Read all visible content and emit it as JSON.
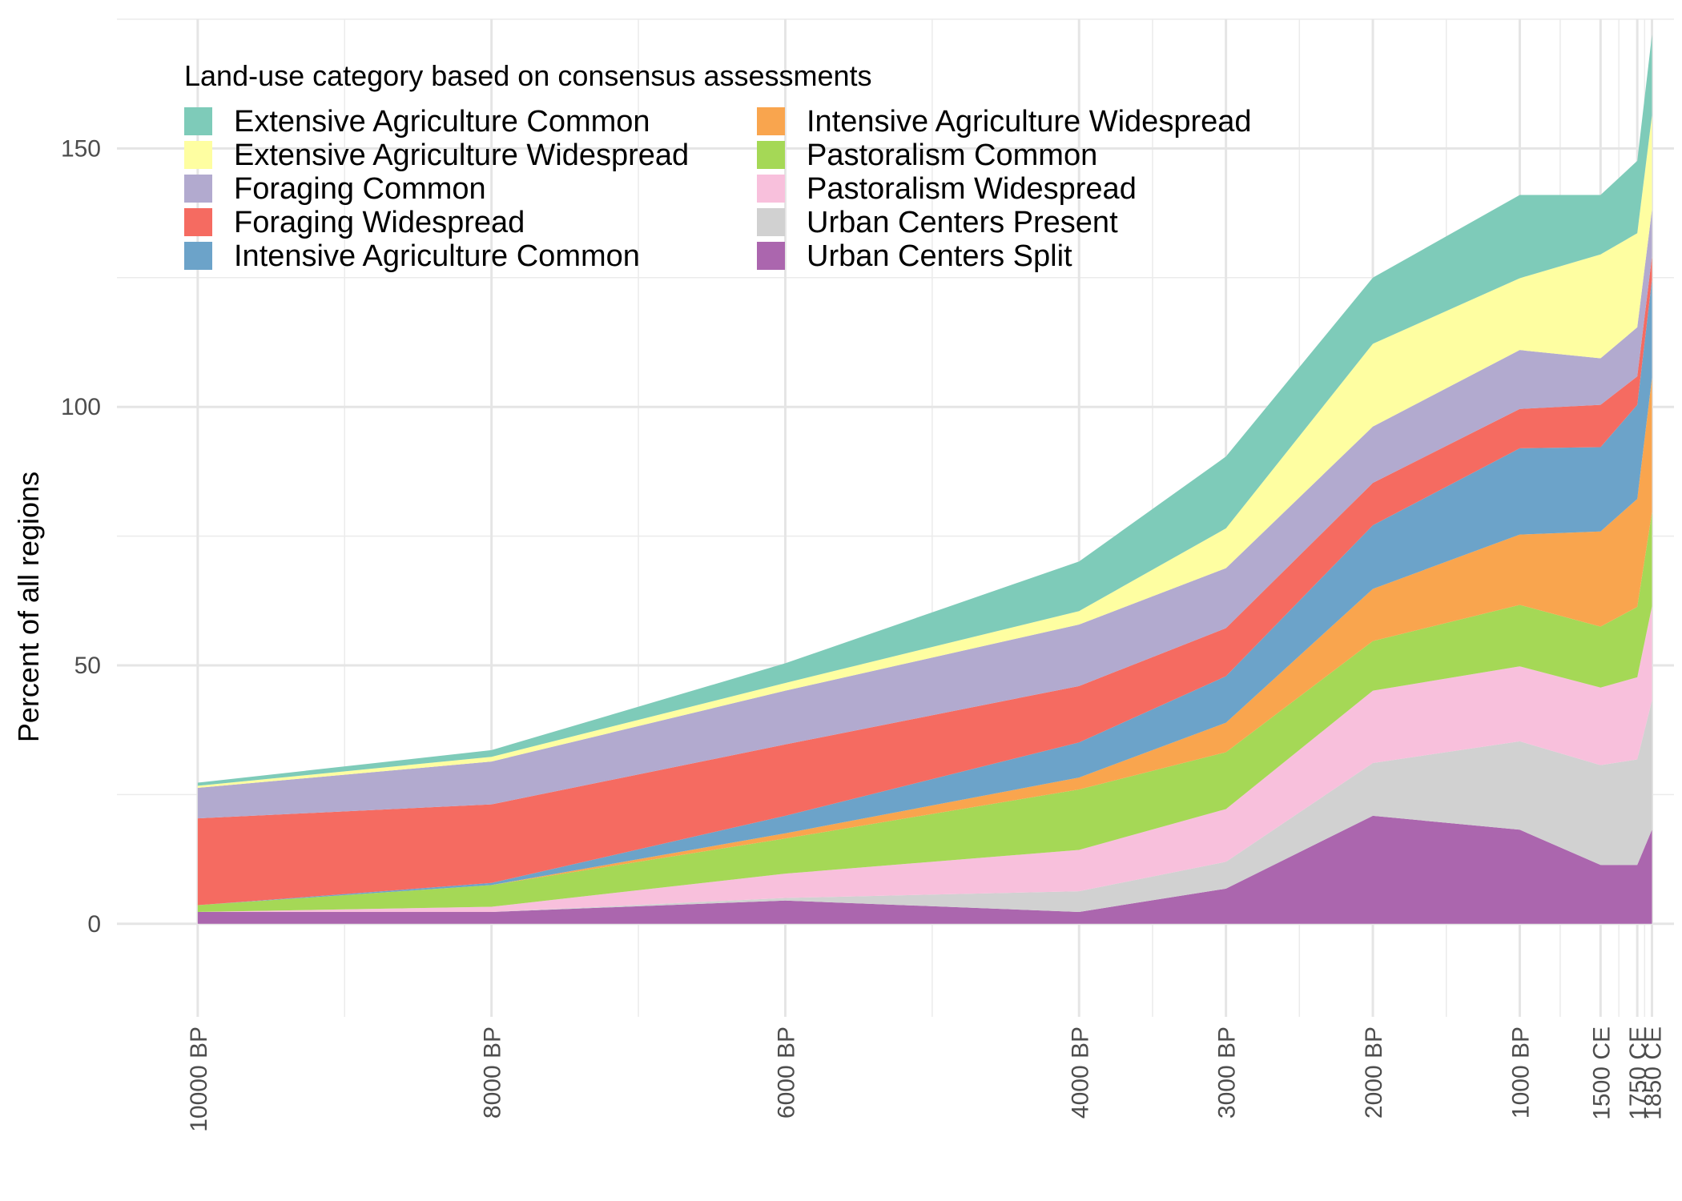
{
  "chart_data": {
    "type": "area",
    "stacked": true,
    "xlabel": "",
    "ylabel": "Percent of all regions",
    "ylim": [
      -18,
      175
    ],
    "y_ticks": [
      0,
      50,
      100,
      150
    ],
    "x_axis": "years before present (1950 CE = 0)",
    "xlim": [
      10550,
      -50
    ],
    "x": [
      10000,
      8000,
      6000,
      4000,
      3000,
      2000,
      1000,
      450,
      200,
      100
    ],
    "x_ticks": [
      {
        "value": 10000,
        "label": "10000 BP"
      },
      {
        "value": 8000,
        "label": "8000 BP"
      },
      {
        "value": 6000,
        "label": "6000 BP"
      },
      {
        "value": 4000,
        "label": "4000 BP"
      },
      {
        "value": 3000,
        "label": "3000 BP"
      },
      {
        "value": 2000,
        "label": "2000 BP"
      },
      {
        "value": 1000,
        "label": "1000 BP"
      },
      {
        "value": 450,
        "label": "1500 CE"
      },
      {
        "value": 200,
        "label": "1750 CE"
      },
      {
        "value": 100,
        "label": "1850 CE"
      }
    ],
    "x_minor_grid": [
      9000,
      7000,
      5000,
      3500,
      2500,
      1500,
      725,
      325,
      150
    ],
    "grid": true,
    "legend": {
      "title": "Land-use category based on consensus assessments",
      "placement": "top-left",
      "columns": 2
    },
    "series": [
      {
        "name": "Urban Centers Split",
        "color": "#ab66ae",
        "values": [
          2.3,
          2.3,
          4.5,
          2.3,
          6.8,
          20.9,
          18.2,
          11.4,
          11.4,
          18.2
        ]
      },
      {
        "name": "Urban Centers Present",
        "color": "#d1d1d1",
        "values": [
          0,
          0,
          0.5,
          4,
          5.2,
          10.2,
          17.1,
          19.3,
          20.4,
          25
        ]
      },
      {
        "name": "Pastoralism Widespread",
        "color": "#f8c0dc",
        "values": [
          0,
          1,
          4.7,
          8,
          10.2,
          14,
          14.5,
          15,
          15.9,
          18.2
        ]
      },
      {
        "name": "Pastoralism Common",
        "color": "#a5d856",
        "values": [
          1.3,
          4.2,
          6.8,
          11.7,
          11,
          9.6,
          11.9,
          11.8,
          13.6,
          18.2
        ]
      },
      {
        "name": "Intensive Agriculture Widespread",
        "color": "#f9a54e",
        "values": [
          0,
          0,
          1,
          2.3,
          5.7,
          10.1,
          13.6,
          18.4,
          20.9,
          26
        ]
      },
      {
        "name": "Intensive Agriculture Common",
        "color": "#6ca3c9",
        "values": [
          0,
          0.4,
          3.4,
          6.8,
          9,
          12.3,
          16.7,
          16.3,
          18.2,
          19
        ]
      },
      {
        "name": "Foraging Widespread",
        "color": "#f56b61",
        "values": [
          16.8,
          15.2,
          13.8,
          10.9,
          9.3,
          8.2,
          7.6,
          8.2,
          5.5,
          4.5
        ]
      },
      {
        "name": "Foraging Common",
        "color": "#b2aacf",
        "values": [
          5.9,
          8.3,
          10.4,
          11.9,
          11.6,
          10.9,
          11.4,
          9,
          9.5,
          9.1
        ]
      },
      {
        "name": "Extensive Agriculture Widespread",
        "color": "#fefea1",
        "values": [
          0.4,
          0.9,
          1.5,
          2.6,
          7.7,
          16,
          13.9,
          20.1,
          18.2,
          18.2
        ]
      },
      {
        "name": "Extensive Agriculture Common",
        "color": "#7ecbb9",
        "values": [
          0.6,
          1.3,
          3.8,
          9.6,
          13.9,
          12.8,
          16.1,
          11.5,
          14,
          15.6
        ]
      }
    ],
    "legend_order": [
      "Extensive Agriculture Common",
      "Extensive Agriculture Widespread",
      "Foraging Common",
      "Foraging Widespread",
      "Intensive Agriculture Common",
      "Intensive Agriculture Widespread",
      "Pastoralism Common",
      "Pastoralism Widespread",
      "Urban Centers Present",
      "Urban Centers Split"
    ]
  }
}
